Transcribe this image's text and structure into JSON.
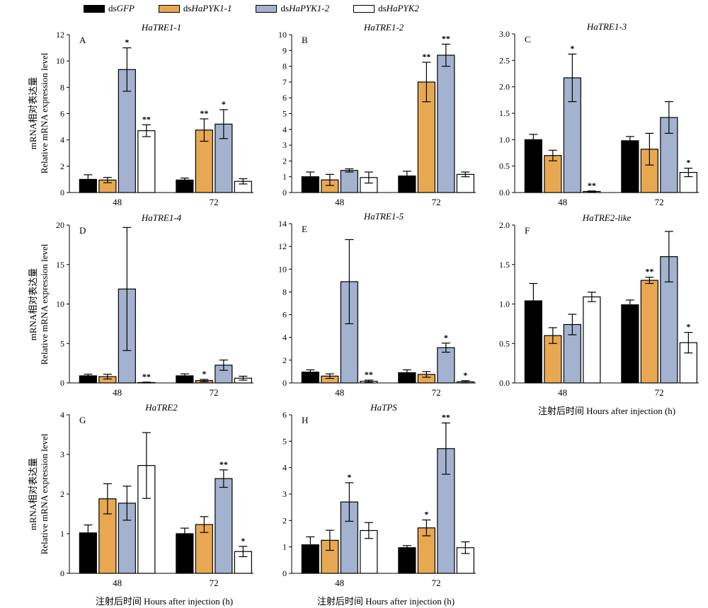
{
  "legend": [
    {
      "prefix": "ds",
      "name": "GFP",
      "color": "#000000"
    },
    {
      "prefix": "ds",
      "name": "HaPYK1-1",
      "color": "#E8A852"
    },
    {
      "prefix": "ds",
      "name": "HaPYK1-2",
      "color": "#A3B2CF"
    },
    {
      "prefix": "ds",
      "name": "HaPYK2",
      "color": "#FFFFFF"
    }
  ],
  "ylabel_cn": "mRNA相对表达量",
  "ylabel_en": "Relative mRNA expression level",
  "xlabel": "注射后时间 Hours after injection (h)",
  "chart_data": [
    {
      "panel": "A",
      "type": "bar",
      "title": "HaTRE1-1",
      "categories": [
        "48",
        "72"
      ],
      "ylim": [
        0,
        12
      ],
      "yticks": [
        0,
        2,
        4,
        6,
        8,
        10,
        12
      ],
      "series": [
        {
          "name": "dsGFP",
          "values": [
            1.0,
            0.95
          ],
          "errors": [
            0.35,
            0.15
          ],
          "sig": [
            "",
            ""
          ]
        },
        {
          "name": "dsHaPYK1-1",
          "values": [
            0.95,
            4.75
          ],
          "errors": [
            0.2,
            0.85
          ],
          "sig": [
            "",
            "**"
          ]
        },
        {
          "name": "dsHaPYK1-2",
          "values": [
            9.35,
            5.2
          ],
          "errors": [
            1.65,
            1.1
          ],
          "sig": [
            "*",
            "*"
          ]
        },
        {
          "name": "dsHaPYK2",
          "values": [
            4.7,
            0.85
          ],
          "errors": [
            0.45,
            0.2
          ],
          "sig": [
            "**",
            ""
          ]
        }
      ]
    },
    {
      "panel": "B",
      "type": "bar",
      "title": "HaTRE1-2",
      "categories": [
        "48",
        "72"
      ],
      "ylim": [
        0,
        10
      ],
      "yticks": [
        0,
        1,
        2,
        3,
        4,
        5,
        6,
        7,
        8,
        9,
        10
      ],
      "series": [
        {
          "name": "dsGFP",
          "values": [
            1.0,
            1.05
          ],
          "errors": [
            0.3,
            0.3
          ],
          "sig": [
            "",
            ""
          ]
        },
        {
          "name": "dsHaPYK1-1",
          "values": [
            0.8,
            7.0
          ],
          "errors": [
            0.35,
            1.25
          ],
          "sig": [
            "",
            "**"
          ]
        },
        {
          "name": "dsHaPYK1-2",
          "values": [
            1.4,
            8.7
          ],
          "errors": [
            0.1,
            0.7
          ],
          "sig": [
            "",
            "**"
          ]
        },
        {
          "name": "dsHaPYK2",
          "values": [
            0.95,
            1.15
          ],
          "errors": [
            0.35,
            0.15
          ],
          "sig": [
            "",
            ""
          ]
        }
      ]
    },
    {
      "panel": "C",
      "type": "bar",
      "title": "HaTRE1-3",
      "categories": [
        "48",
        "72"
      ],
      "ylim": [
        0,
        3
      ],
      "yticks": [
        0,
        0.5,
        1.0,
        1.5,
        2.0,
        2.5,
        3.0
      ],
      "series": [
        {
          "name": "dsGFP",
          "values": [
            1.0,
            0.98
          ],
          "errors": [
            0.1,
            0.08
          ],
          "sig": [
            "",
            ""
          ]
        },
        {
          "name": "dsHaPYK1-1",
          "values": [
            0.7,
            0.82
          ],
          "errors": [
            0.1,
            0.3
          ],
          "sig": [
            "",
            ""
          ]
        },
        {
          "name": "dsHaPYK1-2",
          "values": [
            2.17,
            1.42
          ],
          "errors": [
            0.45,
            0.3
          ],
          "sig": [
            "*",
            ""
          ]
        },
        {
          "name": "dsHaPYK2",
          "values": [
            0.02,
            0.38
          ],
          "errors": [
            0.01,
            0.08
          ],
          "sig": [
            "**",
            "*"
          ]
        }
      ]
    },
    {
      "panel": "D",
      "type": "bar",
      "title": "HaTRE1-4",
      "categories": [
        "48",
        "72"
      ],
      "ylim": [
        0,
        20
      ],
      "yticks": [
        0,
        5,
        10,
        15,
        20
      ],
      "series": [
        {
          "name": "dsGFP",
          "values": [
            0.9,
            0.9
          ],
          "errors": [
            0.2,
            0.25
          ],
          "sig": [
            "",
            ""
          ]
        },
        {
          "name": "dsHaPYK1-1",
          "values": [
            0.8,
            0.3
          ],
          "errors": [
            0.3,
            0.15
          ],
          "sig": [
            "",
            "*"
          ]
        },
        {
          "name": "dsHaPYK1-2",
          "values": [
            11.9,
            2.25
          ],
          "errors": [
            7.8,
            0.65
          ],
          "sig": [
            "",
            ""
          ]
        },
        {
          "name": "dsHaPYK2",
          "values": [
            0.05,
            0.6
          ],
          "errors": [
            0.05,
            0.25
          ],
          "sig": [
            "**",
            ""
          ]
        }
      ]
    },
    {
      "panel": "E",
      "type": "bar",
      "title": "HaTRE1-5",
      "categories": [
        "48",
        "72"
      ],
      "ylim": [
        0,
        14
      ],
      "yticks": [
        0,
        2,
        4,
        6,
        8,
        10,
        12,
        14
      ],
      "series": [
        {
          "name": "dsGFP",
          "values": [
            0.95,
            0.9
          ],
          "errors": [
            0.2,
            0.25
          ],
          "sig": [
            "",
            ""
          ]
        },
        {
          "name": "dsHaPYK1-1",
          "values": [
            0.6,
            0.75
          ],
          "errors": [
            0.2,
            0.25
          ],
          "sig": [
            "",
            ""
          ]
        },
        {
          "name": "dsHaPYK1-2",
          "values": [
            8.9,
            3.1
          ],
          "errors": [
            3.7,
            0.4
          ],
          "sig": [
            "",
            "*"
          ]
        },
        {
          "name": "dsHaPYK2",
          "values": [
            0.15,
            0.1
          ],
          "errors": [
            0.1,
            0.1
          ],
          "sig": [
            "**",
            "*"
          ]
        }
      ]
    },
    {
      "panel": "F",
      "type": "bar",
      "title": "HaTRE2-like",
      "categories": [
        "48",
        "72"
      ],
      "ylim": [
        0,
        2
      ],
      "yticks": [
        0,
        0.5,
        1.0,
        1.5,
        2.0
      ],
      "series": [
        {
          "name": "dsGFP",
          "values": [
            1.04,
            0.99
          ],
          "errors": [
            0.22,
            0.06
          ],
          "sig": [
            "",
            ""
          ]
        },
        {
          "name": "dsHaPYK1-1",
          "values": [
            0.6,
            1.3
          ],
          "errors": [
            0.1,
            0.04
          ],
          "sig": [
            "",
            "**"
          ]
        },
        {
          "name": "dsHaPYK1-2",
          "values": [
            0.74,
            1.6
          ],
          "errors": [
            0.13,
            0.32
          ],
          "sig": [
            "",
            ""
          ]
        },
        {
          "name": "dsHaPYK2",
          "values": [
            1.09,
            0.51
          ],
          "errors": [
            0.06,
            0.13
          ],
          "sig": [
            "",
            "*"
          ]
        }
      ]
    },
    {
      "panel": "G",
      "type": "bar",
      "title": "HaTRE2",
      "categories": [
        "48",
        "72"
      ],
      "ylim": [
        0,
        4
      ],
      "yticks": [
        0,
        1,
        2,
        3,
        4
      ],
      "series": [
        {
          "name": "dsGFP",
          "values": [
            1.02,
            1.0
          ],
          "errors": [
            0.2,
            0.14
          ],
          "sig": [
            "",
            ""
          ]
        },
        {
          "name": "dsHaPYK1-1",
          "values": [
            1.88,
            1.23
          ],
          "errors": [
            0.38,
            0.2
          ],
          "sig": [
            "",
            ""
          ]
        },
        {
          "name": "dsHaPYK1-2",
          "values": [
            1.77,
            2.39
          ],
          "errors": [
            0.43,
            0.22
          ],
          "sig": [
            "",
            "**"
          ]
        },
        {
          "name": "dsHaPYK2",
          "values": [
            2.72,
            0.55
          ],
          "errors": [
            0.83,
            0.13
          ],
          "sig": [
            "",
            "*"
          ]
        }
      ]
    },
    {
      "panel": "H",
      "type": "bar",
      "title": "HaTPS",
      "categories": [
        "48",
        "72"
      ],
      "ylim": [
        0,
        6
      ],
      "yticks": [
        0,
        1,
        2,
        3,
        4,
        5,
        6
      ],
      "series": [
        {
          "name": "dsGFP",
          "values": [
            1.08,
            0.97
          ],
          "errors": [
            0.3,
            0.08
          ],
          "sig": [
            "",
            ""
          ]
        },
        {
          "name": "dsHaPYK1-1",
          "values": [
            1.25,
            1.72
          ],
          "errors": [
            0.38,
            0.3
          ],
          "sig": [
            "",
            "*"
          ]
        },
        {
          "name": "dsHaPYK1-2",
          "values": [
            2.7,
            4.72
          ],
          "errors": [
            0.73,
            0.97
          ],
          "sig": [
            "*",
            "**"
          ]
        },
        {
          "name": "dsHaPYK2",
          "values": [
            1.62,
            0.97
          ],
          "errors": [
            0.3,
            0.22
          ],
          "sig": [
            "",
            ""
          ]
        }
      ]
    }
  ]
}
